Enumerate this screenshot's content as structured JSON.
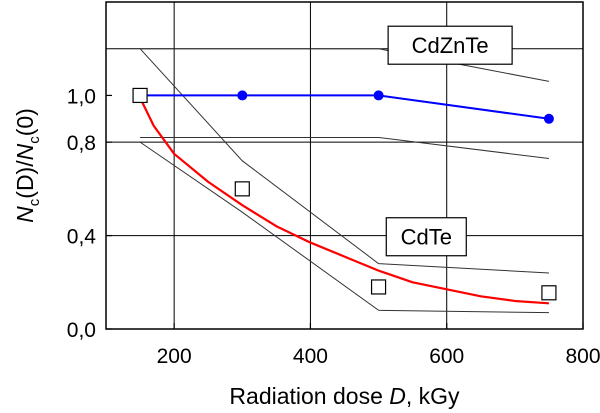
{
  "chart_data": {
    "type": "line",
    "xlim": [
      100,
      800
    ],
    "ylim": [
      0.0,
      1.4
    ],
    "x_ticks": [
      200,
      400,
      600,
      800
    ],
    "x_tick_labels": [
      "200",
      "400",
      "600",
      "800"
    ],
    "y_ticks": [
      0.0,
      0.4,
      0.8,
      1.0
    ],
    "y_tick_labels": [
      "0,0",
      "0,4",
      "0,8",
      "1,0"
    ],
    "grid_x": [
      200,
      400,
      600
    ],
    "grid_y": [
      0.4,
      0.8,
      1.2
    ],
    "xlabel": {
      "text": "Radiation dose ",
      "var": "D",
      "unit": ", kGy"
    },
    "ylabel": {
      "n1": "N",
      "s1": "c",
      "a1": "(D)/",
      "n2": "N",
      "s2": "c",
      "a2": "(0)"
    },
    "annotations": {
      "cdznte": "CdZnTe",
      "cdte": "CdTe"
    },
    "series": [
      {
        "name": "CdZnTe",
        "kind": "line-markers",
        "color": "#0000ff",
        "x": [
          150,
          300,
          500,
          750
        ],
        "y": [
          1.0,
          1.0,
          1.0,
          0.9
        ]
      },
      {
        "name": "CdTe",
        "kind": "fit-curve",
        "color": "#ff0000",
        "x": [
          150,
          170,
          200,
          250,
          300,
          350,
          400,
          450,
          500,
          550,
          600,
          650,
          700,
          750
        ],
        "y": [
          0.99,
          0.87,
          0.75,
          0.63,
          0.53,
          0.44,
          0.37,
          0.31,
          0.25,
          0.2,
          0.17,
          0.14,
          0.12,
          0.11
        ]
      },
      {
        "name": "CdTe",
        "kind": "open-squares",
        "color": "#000000",
        "x": [
          150,
          300,
          500,
          750
        ],
        "y": [
          1.0,
          0.6,
          0.18,
          0.155
        ]
      },
      {
        "name": "CdZnTe upper bound",
        "kind": "bound",
        "color": "#333333",
        "x": [
          150,
          500,
          750
        ],
        "y": [
          1.2,
          1.2,
          1.06
        ]
      },
      {
        "name": "CdZnTe lower bound",
        "kind": "bound",
        "color": "#333333",
        "x": [
          150,
          500,
          750
        ],
        "y": [
          0.82,
          0.82,
          0.73
        ]
      },
      {
        "name": "CdTe upper bound",
        "kind": "bound",
        "color": "#333333",
        "x": [
          150,
          300,
          500,
          750
        ],
        "y": [
          1.2,
          0.72,
          0.28,
          0.24
        ]
      },
      {
        "name": "CdTe lower bound",
        "kind": "bound",
        "color": "#333333",
        "x": [
          150,
          300,
          500,
          750
        ],
        "y": [
          0.8,
          0.5,
          0.08,
          0.07
        ]
      }
    ]
  }
}
